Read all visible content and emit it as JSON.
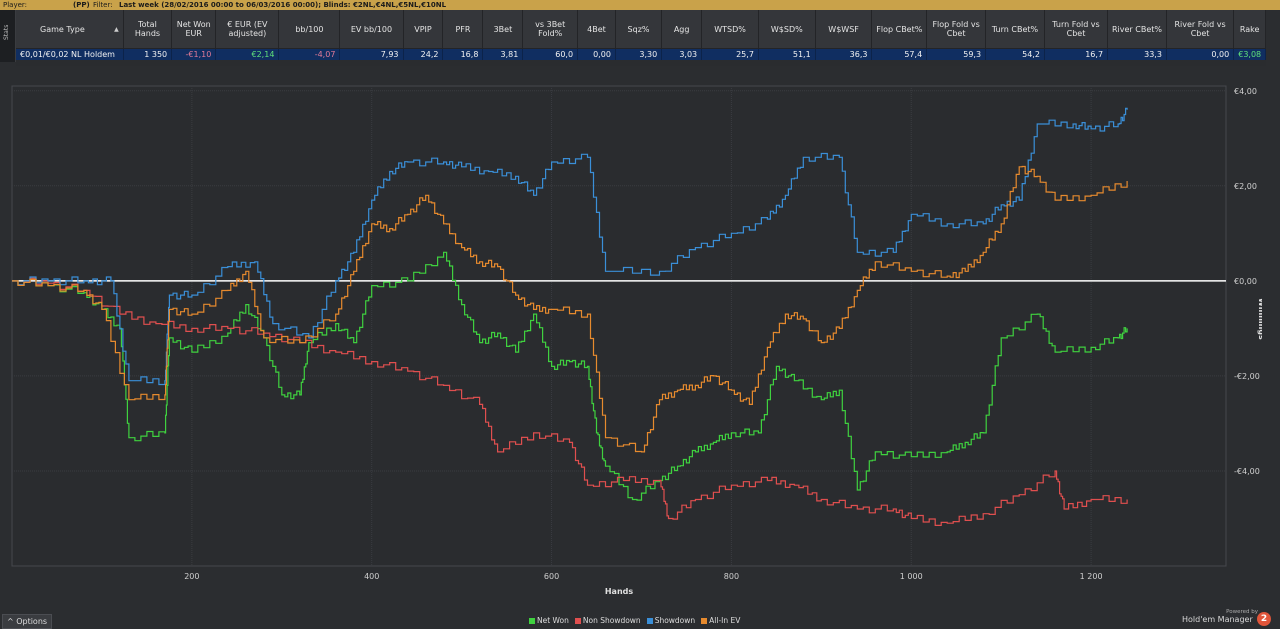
{
  "header": {
    "player_label": "Player:",
    "player_value": "(PP)",
    "filter_label": "Filter:",
    "filter_value": "Last week (28/02/2016 00:00 to 06/03/2016 00:00); Blinds: €2NL,€4NL,€5NL,€10NL"
  },
  "stats_tab": "Stats",
  "table": {
    "columns": [
      "Game Type",
      "Total Hands",
      "Net Won EUR",
      "€ EUR (EV adjusted)",
      "bb/100",
      "EV bb/100",
      "VPIP",
      "PFR",
      "3Bet",
      "vs 3Bet Fold%",
      "4Bet",
      "Sqz%",
      "Agg",
      "WTSD%",
      "W$SD%",
      "W$WSF",
      "Flop CBet%",
      "Flop Fold vs Cbet",
      "Turn CBet%",
      "Turn Fold vs Cbet",
      "River CBet%",
      "River Fold vs Cbet",
      "Rake"
    ],
    "sort_indicator": "▲",
    "row": [
      "€0,01/€0,02 NL Holdem",
      "1 350",
      "-€1,10",
      "€2,14",
      "-4,07",
      "7,93",
      "24,2",
      "16,8",
      "3,81",
      "60,0",
      "0,00",
      "3,30",
      "3,03",
      "25,7",
      "51,1",
      "36,3",
      "57,4",
      "59,3",
      "54,2",
      "16,7",
      "33,3",
      "0,00",
      "€3,08"
    ]
  },
  "chart_data": {
    "type": "line",
    "xlabel": "Hands",
    "ylabel": "Winnings",
    "xlim": [
      0,
      1350
    ],
    "ylim": [
      -6,
      4.1
    ],
    "x_ticks": [
      200,
      400,
      600,
      800,
      1000,
      1200
    ],
    "x_tick_labels": [
      "200",
      "400",
      "600",
      "800",
      "1 000",
      "1 200"
    ],
    "y_ticks": [
      4,
      2,
      0,
      -2,
      -4
    ],
    "y_tick_labels": [
      "€4,00",
      "€2,00",
      "€0,00",
      "-€2,00",
      "-€4,00"
    ],
    "zero_line": true,
    "grid": true,
    "legend_position": "bottom-center",
    "series": [
      {
        "name": "Net Won",
        "color": "#3fd13f",
        "points": [
          [
            0,
            0
          ],
          [
            40,
            -0.1
          ],
          [
            80,
            -0.25
          ],
          [
            100,
            -0.6
          ],
          [
            120,
            -1.0
          ],
          [
            130,
            -3.3
          ],
          [
            170,
            -3.2
          ],
          [
            175,
            -1.2
          ],
          [
            200,
            -1.5
          ],
          [
            240,
            -1.1
          ],
          [
            260,
            -0.5
          ],
          [
            280,
            -1.2
          ],
          [
            300,
            -2.4
          ],
          [
            320,
            -2.4
          ],
          [
            330,
            -1.3
          ],
          [
            360,
            -0.9
          ],
          [
            380,
            -1.3
          ],
          [
            400,
            -0.1
          ],
          [
            440,
            0
          ],
          [
            480,
            0.6
          ],
          [
            500,
            -0.5
          ],
          [
            520,
            -1.3
          ],
          [
            540,
            -1.1
          ],
          [
            560,
            -1.5
          ],
          [
            580,
            -0.7
          ],
          [
            600,
            -1.8
          ],
          [
            620,
            -1.7
          ],
          [
            640,
            -1.8
          ],
          [
            650,
            -3.2
          ],
          [
            660,
            -3.9
          ],
          [
            690,
            -4.6
          ],
          [
            720,
            -4.2
          ],
          [
            740,
            -3.9
          ],
          [
            760,
            -3.6
          ],
          [
            780,
            -3.4
          ],
          [
            800,
            -3.2
          ],
          [
            830,
            -3.2
          ],
          [
            850,
            -1.8
          ],
          [
            870,
            -2.1
          ],
          [
            900,
            -2.5
          ],
          [
            920,
            -2.3
          ],
          [
            940,
            -4.4
          ],
          [
            960,
            -3.6
          ],
          [
            1000,
            -3.7
          ],
          [
            1040,
            -3.6
          ],
          [
            1060,
            -3.4
          ],
          [
            1080,
            -3.2
          ],
          [
            1100,
            -1.2
          ],
          [
            1140,
            -0.7
          ],
          [
            1160,
            -1.5
          ],
          [
            1200,
            -1.4
          ],
          [
            1230,
            -1.2
          ],
          [
            1240,
            -1.0
          ]
        ]
      },
      {
        "name": "Non Showdown",
        "color": "#e04f4f",
        "points": [
          [
            0,
            0
          ],
          [
            40,
            -0.05
          ],
          [
            80,
            -0.2
          ],
          [
            120,
            -0.7
          ],
          [
            160,
            -0.9
          ],
          [
            200,
            -1.0
          ],
          [
            240,
            -1.0
          ],
          [
            280,
            -1.1
          ],
          [
            320,
            -1.3
          ],
          [
            360,
            -1.5
          ],
          [
            400,
            -1.7
          ],
          [
            440,
            -1.9
          ],
          [
            480,
            -2.2
          ],
          [
            520,
            -2.6
          ],
          [
            540,
            -3.6
          ],
          [
            580,
            -3.2
          ],
          [
            620,
            -3.4
          ],
          [
            640,
            -4.3
          ],
          [
            680,
            -4.2
          ],
          [
            720,
            -4.2
          ],
          [
            730,
            -5.0
          ],
          [
            760,
            -4.6
          ],
          [
            800,
            -4.3
          ],
          [
            840,
            -4.2
          ],
          [
            870,
            -4.3
          ],
          [
            900,
            -4.6
          ],
          [
            940,
            -4.8
          ],
          [
            980,
            -4.8
          ],
          [
            1000,
            -5.0
          ],
          [
            1040,
            -5.1
          ],
          [
            1080,
            -4.9
          ],
          [
            1120,
            -4.5
          ],
          [
            1160,
            -4.0
          ],
          [
            1170,
            -4.8
          ],
          [
            1200,
            -4.6
          ],
          [
            1240,
            -4.6
          ]
        ]
      },
      {
        "name": "Showdown",
        "color": "#3a8fd8",
        "points": [
          [
            0,
            0
          ],
          [
            40,
            0
          ],
          [
            80,
            0
          ],
          [
            110,
            0
          ],
          [
            130,
            -2.1
          ],
          [
            170,
            -2.1
          ],
          [
            175,
            -0.3
          ],
          [
            200,
            -0.3
          ],
          [
            240,
            0.3
          ],
          [
            270,
            0.4
          ],
          [
            290,
            -0.9
          ],
          [
            330,
            -1.2
          ],
          [
            360,
            0
          ],
          [
            380,
            0.6
          ],
          [
            400,
            1.7
          ],
          [
            420,
            2.3
          ],
          [
            440,
            2.5
          ],
          [
            480,
            2.5
          ],
          [
            500,
            2.4
          ],
          [
            530,
            2.3
          ],
          [
            560,
            2.2
          ],
          [
            580,
            1.8
          ],
          [
            600,
            2.5
          ],
          [
            640,
            2.6
          ],
          [
            660,
            0.2
          ],
          [
            720,
            0.2
          ],
          [
            760,
            0.7
          ],
          [
            800,
            1.0
          ],
          [
            840,
            1.3
          ],
          [
            860,
            1.8
          ],
          [
            880,
            2.6
          ],
          [
            920,
            2.6
          ],
          [
            940,
            0.6
          ],
          [
            980,
            0.6
          ],
          [
            1000,
            1.4
          ],
          [
            1040,
            1.2
          ],
          [
            1080,
            1.2
          ],
          [
            1100,
            1.6
          ],
          [
            1120,
            1.7
          ],
          [
            1140,
            3.3
          ],
          [
            1180,
            3.3
          ],
          [
            1200,
            3.2
          ],
          [
            1230,
            3.3
          ],
          [
            1240,
            3.6
          ]
        ]
      },
      {
        "name": "All-In EV",
        "color": "#e68a2e",
        "points": [
          [
            0,
            0
          ],
          [
            40,
            -0.1
          ],
          [
            80,
            -0.2
          ],
          [
            100,
            -0.6
          ],
          [
            130,
            -2.5
          ],
          [
            170,
            -2.4
          ],
          [
            175,
            -0.6
          ],
          [
            200,
            -0.7
          ],
          [
            240,
            -0.2
          ],
          [
            260,
            0.2
          ],
          [
            280,
            -1.2
          ],
          [
            320,
            -1.3
          ],
          [
            360,
            -0.7
          ],
          [
            380,
            0.2
          ],
          [
            400,
            1.2
          ],
          [
            420,
            1.1
          ],
          [
            440,
            1.4
          ],
          [
            460,
            1.8
          ],
          [
            480,
            1.2
          ],
          [
            500,
            0.7
          ],
          [
            520,
            0.4
          ],
          [
            540,
            0.3
          ],
          [
            560,
            -0.3
          ],
          [
            580,
            -0.6
          ],
          [
            600,
            -0.6
          ],
          [
            640,
            -0.7
          ],
          [
            660,
            -3.3
          ],
          [
            700,
            -3.6
          ],
          [
            720,
            -2.5
          ],
          [
            740,
            -2.3
          ],
          [
            760,
            -2.2
          ],
          [
            780,
            -2.0
          ],
          [
            800,
            -2.3
          ],
          [
            820,
            -2.6
          ],
          [
            840,
            -1.4
          ],
          [
            860,
            -0.7
          ],
          [
            880,
            -0.8
          ],
          [
            900,
            -1.3
          ],
          [
            920,
            -1.0
          ],
          [
            940,
            -0.2
          ],
          [
            960,
            0.4
          ],
          [
            1000,
            0.2
          ],
          [
            1040,
            0.1
          ],
          [
            1060,
            0.2
          ],
          [
            1080,
            0.6
          ],
          [
            1100,
            1.2
          ],
          [
            1120,
            2.4
          ],
          [
            1140,
            2.2
          ],
          [
            1160,
            1.7
          ],
          [
            1200,
            1.8
          ],
          [
            1240,
            2.1
          ]
        ]
      }
    ]
  },
  "footer": {
    "options_label": "Options",
    "options_icon": "^",
    "legend": [
      {
        "label": "Net Won",
        "color": "#3fd13f"
      },
      {
        "label": "Non Showdown",
        "color": "#e04f4f"
      },
      {
        "label": "Showdown",
        "color": "#3a8fd8"
      },
      {
        "label": "All-In EV",
        "color": "#e68a2e"
      }
    ],
    "powered_by": "Powered by",
    "brand": "Hold'em Manager",
    "brand_badge": "2"
  }
}
